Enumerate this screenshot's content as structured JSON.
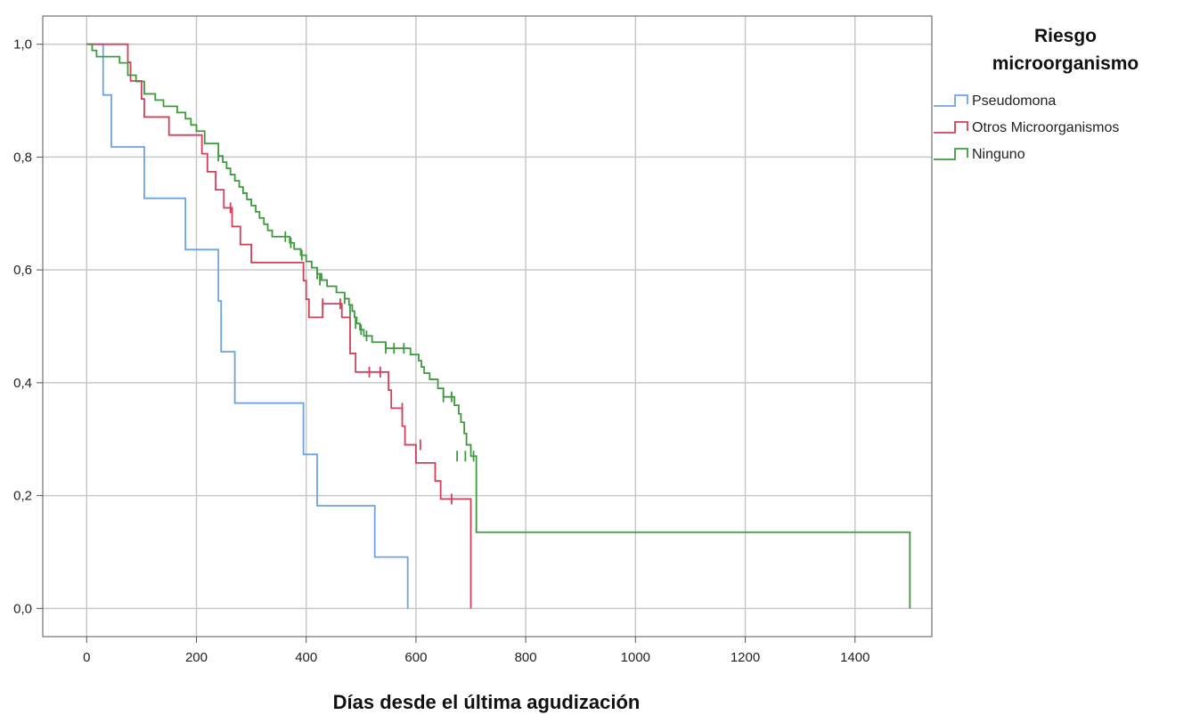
{
  "chart_data": {
    "type": "line",
    "subtype": "kaplan-meier step",
    "xlabel": "Días desde el última agudización",
    "ylabel": "",
    "xlim": [
      -80,
      1540
    ],
    "ylim": [
      -0.05,
      1.05
    ],
    "xticks": [
      0,
      200,
      400,
      600,
      800,
      1000,
      1200,
      1400
    ],
    "yticks": [
      0.0,
      0.2,
      0.4,
      0.6,
      0.8,
      1.0
    ],
    "ytick_labels": [
      "0,0",
      "0,2",
      "0,4",
      "0,6",
      "0,8",
      "1,0"
    ],
    "grid": true,
    "legend": {
      "title_line1": "Riesgo",
      "title_line2": "microorganismo",
      "placement": "right"
    },
    "series": [
      {
        "name": "Pseudomona",
        "color": "#6fa3dc",
        "steps": [
          [
            0,
            1.0
          ],
          [
            30,
            0.91
          ],
          [
            45,
            0.818
          ],
          [
            105,
            0.727
          ],
          [
            180,
            0.636
          ],
          [
            240,
            0.545
          ],
          [
            245,
            0.455
          ],
          [
            270,
            0.364
          ],
          [
            395,
            0.273
          ],
          [
            420,
            0.182
          ],
          [
            525,
            0.091
          ],
          [
            585,
            0.0
          ]
        ],
        "censored": []
      },
      {
        "name": "Otros Microorganismos",
        "color": "#d2405a",
        "steps": [
          [
            0,
            1.0
          ],
          [
            75,
            0.968
          ],
          [
            80,
            0.935
          ],
          [
            100,
            0.903
          ],
          [
            105,
            0.871
          ],
          [
            150,
            0.839
          ],
          [
            210,
            0.806
          ],
          [
            220,
            0.774
          ],
          [
            235,
            0.742
          ],
          [
            250,
            0.71
          ],
          [
            265,
            0.677
          ],
          [
            280,
            0.645
          ],
          [
            300,
            0.613
          ],
          [
            395,
            0.581
          ],
          [
            400,
            0.548
          ],
          [
            405,
            0.516
          ],
          [
            430,
            0.54
          ],
          [
            465,
            0.516
          ],
          [
            480,
            0.452
          ],
          [
            490,
            0.419
          ],
          [
            550,
            0.387
          ],
          [
            555,
            0.355
          ],
          [
            575,
            0.323
          ],
          [
            580,
            0.29
          ],
          [
            600,
            0.258
          ],
          [
            635,
            0.226
          ],
          [
            645,
            0.194
          ],
          [
            700,
            0.0
          ]
        ],
        "censored": [
          [
            262,
            0.71
          ],
          [
            430,
            0.54
          ],
          [
            462,
            0.54
          ],
          [
            515,
            0.419
          ],
          [
            535,
            0.419
          ],
          [
            575,
            0.355
          ],
          [
            608,
            0.29
          ],
          [
            665,
            0.194
          ]
        ]
      },
      {
        "name": "Ninguno",
        "color": "#3f9a3f",
        "steps": [
          [
            0,
            1.0
          ],
          [
            10,
            0.989
          ],
          [
            18,
            0.978
          ],
          [
            60,
            0.967
          ],
          [
            75,
            0.945
          ],
          [
            90,
            0.934
          ],
          [
            105,
            0.912
          ],
          [
            125,
            0.901
          ],
          [
            140,
            0.89
          ],
          [
            165,
            0.879
          ],
          [
            180,
            0.868
          ],
          [
            190,
            0.857
          ],
          [
            200,
            0.846
          ],
          [
            215,
            0.824
          ],
          [
            240,
            0.802
          ],
          [
            248,
            0.791
          ],
          [
            255,
            0.78
          ],
          [
            262,
            0.769
          ],
          [
            270,
            0.758
          ],
          [
            278,
            0.747
          ],
          [
            285,
            0.736
          ],
          [
            292,
            0.725
          ],
          [
            300,
            0.714
          ],
          [
            308,
            0.703
          ],
          [
            315,
            0.692
          ],
          [
            323,
            0.681
          ],
          [
            330,
            0.67
          ],
          [
            338,
            0.659
          ],
          [
            370,
            0.648
          ],
          [
            378,
            0.637
          ],
          [
            390,
            0.626
          ],
          [
            400,
            0.615
          ],
          [
            410,
            0.604
          ],
          [
            420,
            0.593
          ],
          [
            428,
            0.582
          ],
          [
            438,
            0.571
          ],
          [
            455,
            0.56
          ],
          [
            470,
            0.549
          ],
          [
            478,
            0.538
          ],
          [
            484,
            0.527
          ],
          [
            488,
            0.516
          ],
          [
            492,
            0.505
          ],
          [
            498,
            0.494
          ],
          [
            505,
            0.483
          ],
          [
            520,
            0.472
          ],
          [
            545,
            0.461
          ],
          [
            590,
            0.45
          ],
          [
            605,
            0.439
          ],
          [
            610,
            0.428
          ],
          [
            615,
            0.417
          ],
          [
            625,
            0.406
          ],
          [
            640,
            0.39
          ],
          [
            650,
            0.375
          ],
          [
            670,
            0.36
          ],
          [
            678,
            0.345
          ],
          [
            682,
            0.33
          ],
          [
            688,
            0.31
          ],
          [
            692,
            0.29
          ],
          [
            700,
            0.27
          ],
          [
            710,
            0.135
          ],
          [
            1500,
            0.0
          ]
        ],
        "censored": [
          [
            240,
            0.802
          ],
          [
            362,
            0.659
          ],
          [
            372,
            0.648
          ],
          [
            392,
            0.626
          ],
          [
            420,
            0.593
          ],
          [
            425,
            0.582
          ],
          [
            470,
            0.549
          ],
          [
            480,
            0.527
          ],
          [
            490,
            0.505
          ],
          [
            500,
            0.494
          ],
          [
            510,
            0.483
          ],
          [
            545,
            0.461
          ],
          [
            560,
            0.461
          ],
          [
            578,
            0.461
          ],
          [
            650,
            0.375
          ],
          [
            665,
            0.375
          ],
          [
            675,
            0.27
          ],
          [
            690,
            0.27
          ],
          [
            705,
            0.27
          ]
        ]
      }
    ]
  }
}
